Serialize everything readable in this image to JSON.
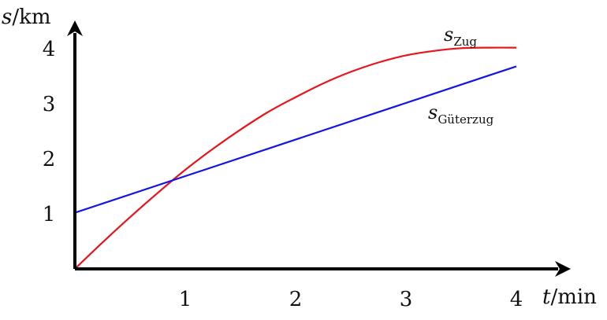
{
  "chart_data": {
    "type": "line",
    "xlabel": {
      "var": "t",
      "unit": "/min"
    },
    "ylabel": {
      "var": "s",
      "unit": "/km"
    },
    "xlim": [
      0,
      4.4
    ],
    "ylim": [
      0,
      4.4
    ],
    "xticks": [
      "1",
      "2",
      "3",
      "4"
    ],
    "yticks": [
      "1",
      "2",
      "3",
      "4"
    ],
    "grid": false,
    "series": [
      {
        "name": {
          "var": "s",
          "sub": "Zug"
        },
        "color": "#e8141c",
        "x": [
          0,
          0.25,
          0.5,
          0.75,
          1,
          1.25,
          1.5,
          1.75,
          2,
          2.25,
          2.5,
          2.75,
          3,
          3.25,
          3.5,
          3.75,
          4
        ],
        "y": [
          0,
          0.48,
          0.94,
          1.38,
          1.8,
          2.18,
          2.53,
          2.85,
          3.12,
          3.37,
          3.58,
          3.75,
          3.88,
          3.96,
          4.01,
          4.02,
          4.02
        ]
      },
      {
        "name": {
          "var": "s",
          "sub": "Güterzug"
        },
        "color": "#1414e6",
        "x": [
          0,
          4
        ],
        "y": [
          1.02,
          3.68
        ]
      }
    ]
  }
}
